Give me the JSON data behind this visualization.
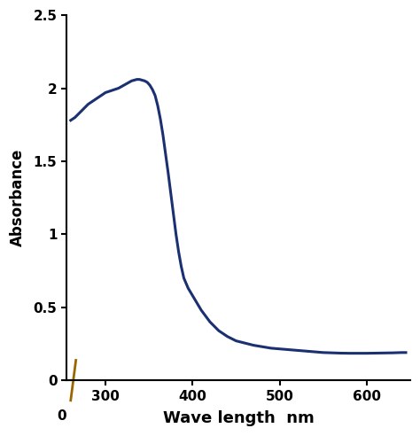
{
  "line_color": "#1a3070",
  "line_width": 2.2,
  "xlabel": "Wave length  nm",
  "ylabel": "Absorbance",
  "xlabel_fontsize": 13,
  "ylabel_fontsize": 12,
  "xlabel_fontweight": "bold",
  "ylabel_fontweight": "bold",
  "tick_fontsize": 11,
  "tick_fontweight": "bold",
  "xlim": [
    255,
    650
  ],
  "ylim": [
    0,
    2.5
  ],
  "xticks": [
    300,
    400,
    500,
    600
  ],
  "yticks": [
    0,
    0.5,
    1,
    1.5,
    2,
    2.5
  ],
  "ytick_labels": [
    "0",
    "0.5",
    "1",
    "1.5",
    "2",
    "2.5"
  ],
  "background_color": "#ffffff",
  "x_data": [
    260,
    265,
    270,
    275,
    280,
    285,
    290,
    295,
    300,
    305,
    310,
    315,
    318,
    321,
    324,
    327,
    330,
    333,
    336,
    339,
    342,
    345,
    348,
    351,
    354,
    357,
    360,
    363,
    366,
    369,
    372,
    375,
    378,
    381,
    384,
    387,
    390,
    395,
    400,
    405,
    410,
    415,
    420,
    425,
    430,
    435,
    440,
    445,
    450,
    460,
    470,
    480,
    490,
    500,
    510,
    520,
    530,
    540,
    550,
    560,
    570,
    580,
    590,
    600,
    610,
    620,
    630,
    640,
    645
  ],
  "y_data": [
    1.78,
    1.8,
    1.83,
    1.86,
    1.89,
    1.91,
    1.93,
    1.95,
    1.97,
    1.98,
    1.99,
    2.0,
    2.01,
    2.02,
    2.03,
    2.04,
    2.05,
    2.055,
    2.06,
    2.06,
    2.055,
    2.05,
    2.04,
    2.02,
    1.99,
    1.95,
    1.88,
    1.79,
    1.68,
    1.55,
    1.42,
    1.28,
    1.14,
    1.0,
    0.88,
    0.78,
    0.7,
    0.63,
    0.58,
    0.53,
    0.48,
    0.44,
    0.4,
    0.37,
    0.34,
    0.32,
    0.3,
    0.285,
    0.27,
    0.255,
    0.24,
    0.23,
    0.22,
    0.215,
    0.21,
    0.205,
    0.2,
    0.195,
    0.19,
    0.188,
    0.186,
    0.185,
    0.185,
    0.185,
    0.186,
    0.187,
    0.188,
    0.19,
    0.19
  ]
}
